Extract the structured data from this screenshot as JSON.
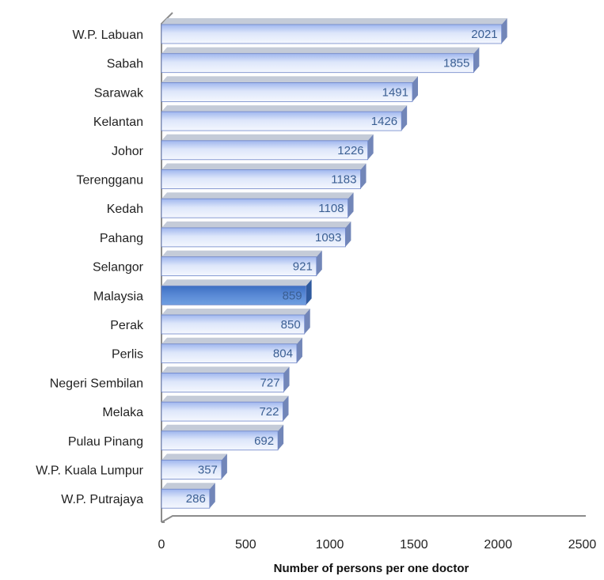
{
  "chart_data": {
    "type": "bar",
    "orientation": "horizontal",
    "categories": [
      "W.P. Labuan",
      "Sabah",
      "Sarawak",
      "Kelantan",
      "Johor",
      "Terengganu",
      "Kedah",
      "Pahang",
      "Selangor",
      "Malaysia",
      "Perak",
      "Perlis",
      "Negeri Sembilan",
      "Melaka",
      "Pulau Pinang",
      "W.P. Kuala Lumpur",
      "W.P. Putrajaya"
    ],
    "values": [
      2021,
      1855,
      1491,
      1426,
      1226,
      1183,
      1108,
      1093,
      921,
      859,
      850,
      804,
      727,
      722,
      692,
      357,
      286
    ],
    "highlight": "Malaysia",
    "xlabel": "Number of persons per one doctor",
    "xlim": [
      0,
      2500
    ],
    "xticks": [
      0,
      500,
      1000,
      1500,
      2000,
      2500
    ],
    "grid": false,
    "legend": "none",
    "colors": {
      "bar_light": "#dde6fa",
      "bar_mid": "#9fb6ee",
      "bar_edge": "#6c84c8",
      "bar_side": "#7286b8",
      "bar_top": "#c4cbd8",
      "highlight_light": "#6f9fe0",
      "highlight_dark": "#3d6fc2",
      "value_text": "#3b5f93",
      "axis": "#8c8c8c"
    }
  }
}
